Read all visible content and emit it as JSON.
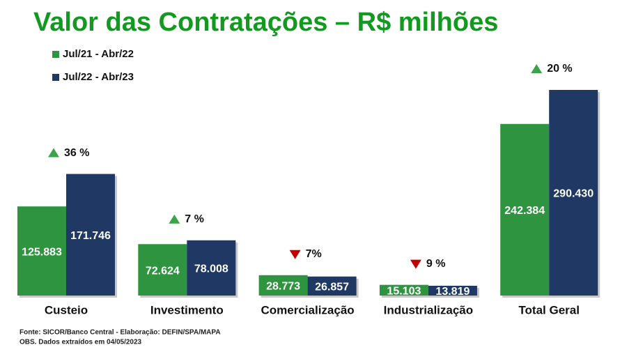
{
  "chart_data": {
    "type": "bar",
    "title": "Valor das Contratações – R$ milhões",
    "categories": [
      "Custeio",
      "Investimento",
      "Comercialização",
      "Industrialização",
      "Total Geral"
    ],
    "series": [
      {
        "name": "Jul/21 - Abr/22",
        "color": "#2f9440",
        "values": [
          125883,
          72624,
          28773,
          15103,
          242384
        ],
        "value_labels": [
          "125.883",
          "72.624",
          "28.773",
          "15.103",
          "242.384"
        ]
      },
      {
        "name": "Jul/22 - Abr/23",
        "color": "#1f3864",
        "values": [
          171746,
          78008,
          26857,
          13819,
          290430
        ],
        "value_labels": [
          "171.746",
          "78.008",
          "26.857",
          "13.819",
          "290.430"
        ]
      }
    ],
    "annotations": [
      {
        "text": "36 %",
        "direction": "up"
      },
      {
        "text": "7 %",
        "direction": "up"
      },
      {
        "text": "7%",
        "direction": "down"
      },
      {
        "text": "9 %",
        "direction": "down"
      },
      {
        "text": "20 %",
        "direction": "up"
      }
    ],
    "footnotes": [
      "Fonte: SICOR/Banco Central - Elaboração: DEFIN/SPA/MAPA",
      "OBS. Dados extraídos em 04/05/2023"
    ]
  }
}
